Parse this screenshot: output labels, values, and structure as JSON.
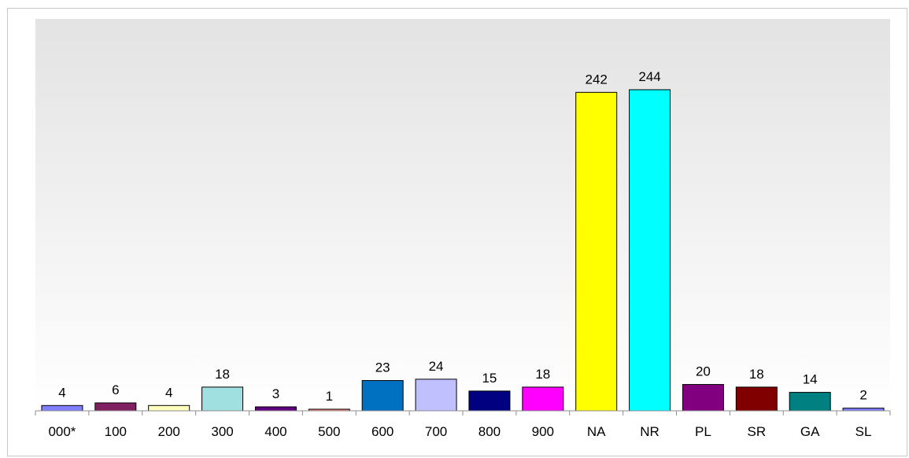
{
  "chart_data": {
    "type": "bar",
    "title": "",
    "xlabel": "",
    "ylabel": "",
    "ylim": [
      0,
      270
    ],
    "grid": false,
    "legend": "none",
    "plot_background": "gradient #e3e3e3 to #ffffff",
    "categories": [
      "000*",
      "100",
      "200",
      "300",
      "400",
      "500",
      "600",
      "700",
      "800",
      "900",
      "NA",
      "NR",
      "PL",
      "SR",
      "GA",
      "SL"
    ],
    "values": [
      4,
      6,
      4,
      18,
      3,
      1,
      23,
      24,
      15,
      18,
      242,
      244,
      20,
      18,
      14,
      2
    ],
    "colors": [
      "#8080ff",
      "#802060",
      "#ffffc0",
      "#a0e0e0",
      "#600080",
      "#ff8080",
      "#0070c0",
      "#c0c0ff",
      "#000080",
      "#ff00ff",
      "#ffff00",
      "#00ffff",
      "#800080",
      "#800000",
      "#008080",
      "#8080ff"
    ]
  }
}
